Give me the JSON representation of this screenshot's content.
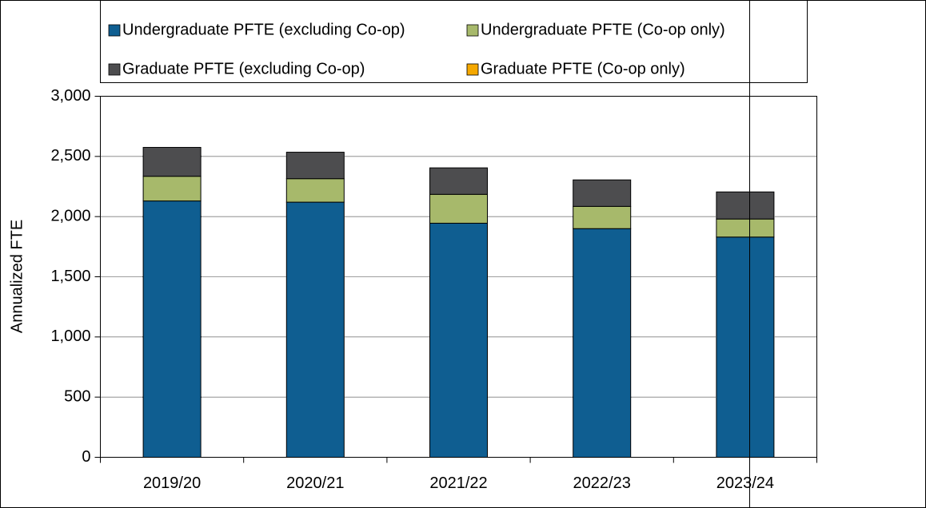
{
  "chart_data": {
    "type": "stacked_bar",
    "ylabel": "Annualized FTE",
    "categories": [
      "2019/20",
      "2020/21",
      "2021/22",
      "2022/23",
      "2023/24"
    ],
    "series": [
      {
        "name": "Undergraduate PFTE (excluding Co-op)",
        "color": "#0f5e91",
        "values": [
          2130,
          2120,
          1945,
          1900,
          1830
        ]
      },
      {
        "name": "Undergraduate PFTE (Co-op only)",
        "color": "#a7b96b",
        "values": [
          205,
          195,
          240,
          185,
          150
        ]
      },
      {
        "name": "Graduate PFTE (excluding Co-op)",
        "color": "#4d4d4f",
        "values": [
          240,
          220,
          220,
          220,
          225
        ]
      },
      {
        "name": "Graduate PFTE (Co-op only)",
        "color": "#f5a800",
        "values": [
          0,
          0,
          0,
          0,
          0
        ]
      }
    ],
    "ylim": [
      0,
      3000
    ],
    "yticks": [
      0,
      500,
      {
        "value": 1000,
        "label": "1,000"
      },
      {
        "value": 1500,
        "label": "1,500"
      },
      {
        "value": 2000,
        "label": "2,000"
      },
      {
        "value": 2500,
        "label": "2,500"
      },
      {
        "value": 3000,
        "label": "3,000"
      }
    ],
    "grid": true
  }
}
